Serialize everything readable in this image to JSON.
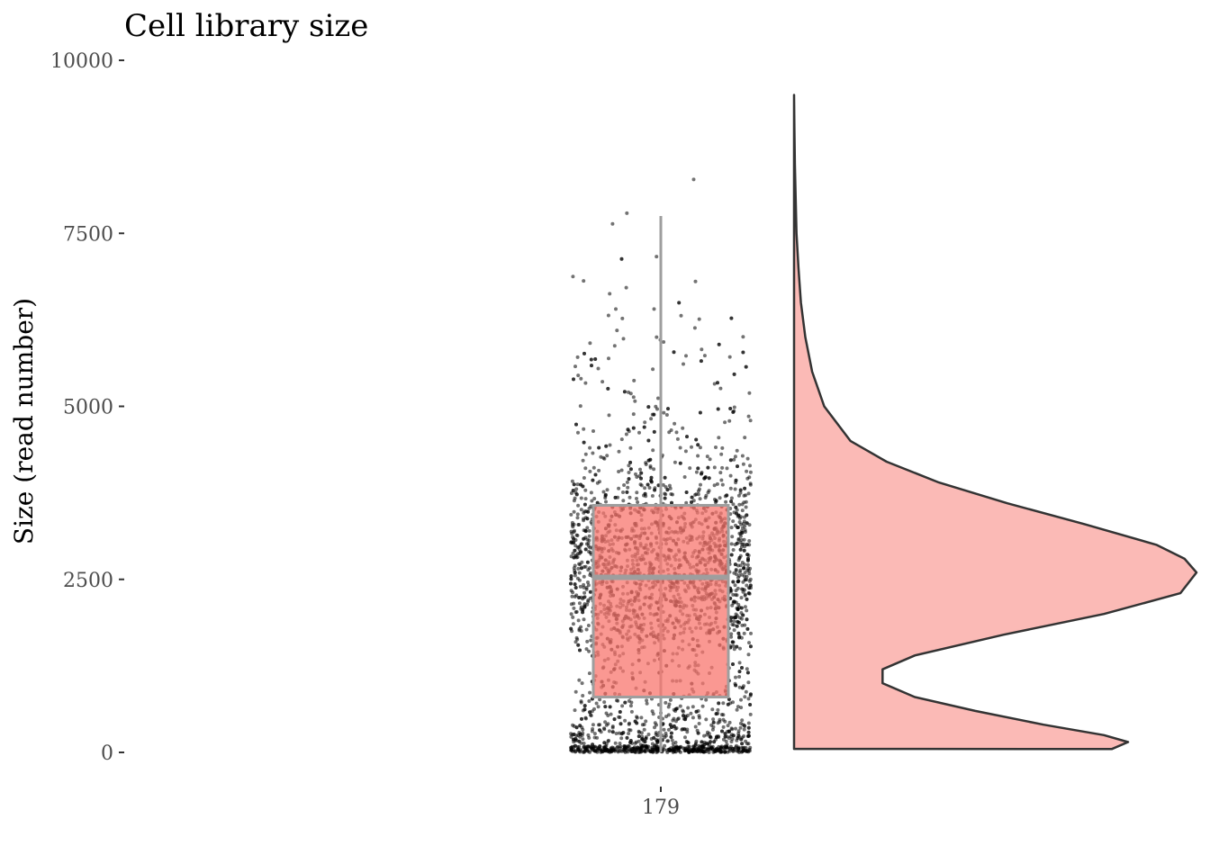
{
  "chart_data": {
    "type": "raincloud",
    "title": "Cell library size",
    "ylabel": "Size (read number)",
    "xlabel": "",
    "ylim": [
      0,
      10000
    ],
    "y_ticks": [
      0,
      2500,
      5000,
      7500,
      10000
    ],
    "y_tick_labels": [
      "0",
      "2500",
      "5000",
      "7500",
      "10000"
    ],
    "categories": [
      "179"
    ],
    "grid": false,
    "legend": "none",
    "box": {
      "min": 0,
      "q1": 800,
      "median": 2530,
      "q3": 3570,
      "max": 7750
    },
    "density_profile": {
      "y": [
        50,
        150,
        250,
        400,
        600,
        800,
        1000,
        1200,
        1400,
        1700,
        2000,
        2300,
        2600,
        2800,
        3000,
        3300,
        3600,
        3900,
        4200,
        4500,
        5000,
        5500,
        6000,
        6500,
        7000,
        7500,
        8000,
        8500,
        9000,
        9500
      ],
      "density": [
        0.79,
        0.83,
        0.77,
        0.62,
        0.45,
        0.3,
        0.22,
        0.22,
        0.3,
        0.52,
        0.77,
        0.96,
        1.0,
        0.97,
        0.9,
        0.72,
        0.53,
        0.36,
        0.23,
        0.14,
        0.075,
        0.045,
        0.028,
        0.017,
        0.011,
        0.006,
        0.004,
        0.002,
        0.001,
        0.0
      ]
    },
    "colors": {
      "box_fill": "#f8766d",
      "box_stroke": "#9e9e9e",
      "violin_fill": "#f8766d",
      "violin_outline": "#333333",
      "points": "#000000",
      "axis_text": "#4d4d4d"
    }
  }
}
